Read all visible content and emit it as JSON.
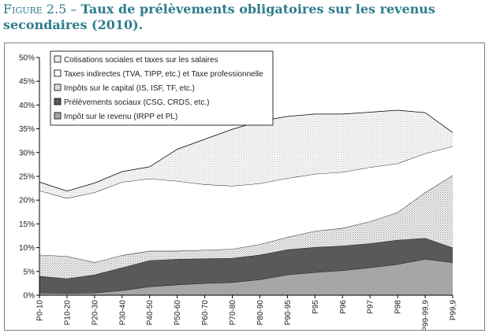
{
  "figure": {
    "title_lead": "Figure 2.5 – ",
    "title_rest": "Taux de prélèvements obligatoires sur les revenus secondaires (2010)."
  },
  "colors": {
    "title": "#2e7d8c",
    "irpp": "#a6a6a6",
    "csg": "#595959",
    "capital": "#d9d9d9",
    "indirect": "#ffffff",
    "salaires": "#ececec",
    "outline": "#000000"
  },
  "chart_data": {
    "type": "area",
    "stacked": true,
    "categories": [
      "P0-10",
      "P10-20",
      "P20-30",
      "P30-40",
      "P40-50",
      "P50-60",
      "P60-70",
      "P70-80",
      "P80-90",
      "P90-95",
      "P95",
      "P96",
      "P97",
      "P98",
      "P99-99,9",
      "P99,9"
    ],
    "ylim": [
      0,
      50
    ],
    "yticks": [
      "0%",
      "5%",
      "10%",
      "15%",
      "20%",
      "25%",
      "30%",
      "35%",
      "40%",
      "45%",
      "50%"
    ],
    "grid": false,
    "legend_position": "top-left",
    "series": [
      {
        "name": "Impôt sur le revenu (IRPP et PL)",
        "values": [
          0.5,
          0.4,
          0.5,
          1,
          1.8,
          2.2,
          2.5,
          2.7,
          3.3,
          4.3,
          4.8,
          5.2,
          5.8,
          6.5,
          7.6,
          6.9
        ]
      },
      {
        "name": "Prélèvements sociaux (CSG, CRDS, etc.)",
        "values": [
          3.5,
          3.1,
          3.8,
          4.8,
          5.5,
          5.4,
          5.2,
          5.1,
          5.2,
          5.3,
          5.3,
          5.2,
          5.1,
          5.1,
          4.4,
          3.1
        ]
      },
      {
        "name": "Impôts sur le capital (IS, ISF, TF, etc.)",
        "values": [
          4.5,
          4.7,
          2.6,
          2.6,
          2,
          1.7,
          1.8,
          1.9,
          2.2,
          2.6,
          3.4,
          3.7,
          4.6,
          5.8,
          9.6,
          15.2
        ]
      },
      {
        "name": "Taxes indirectes (TVA, TIPP, etc.) et Taxe professionnelle",
        "values": [
          13.5,
          12.2,
          14.7,
          15.4,
          15.2,
          14.7,
          13.8,
          13.3,
          12.8,
          12.4,
          12,
          11.8,
          11.4,
          10.3,
          8.2,
          6.1
        ]
      },
      {
        "name": "Cotisations sociales et taxes sur les salaires",
        "values": [
          1.8,
          1.5,
          2,
          2.2,
          2.5,
          6.7,
          9.5,
          11.9,
          13.1,
          13,
          12.6,
          12.2,
          11.6,
          11.2,
          8.6,
          2.9
        ]
      }
    ],
    "legend_order": [
      4,
      3,
      2,
      1,
      0
    ]
  }
}
